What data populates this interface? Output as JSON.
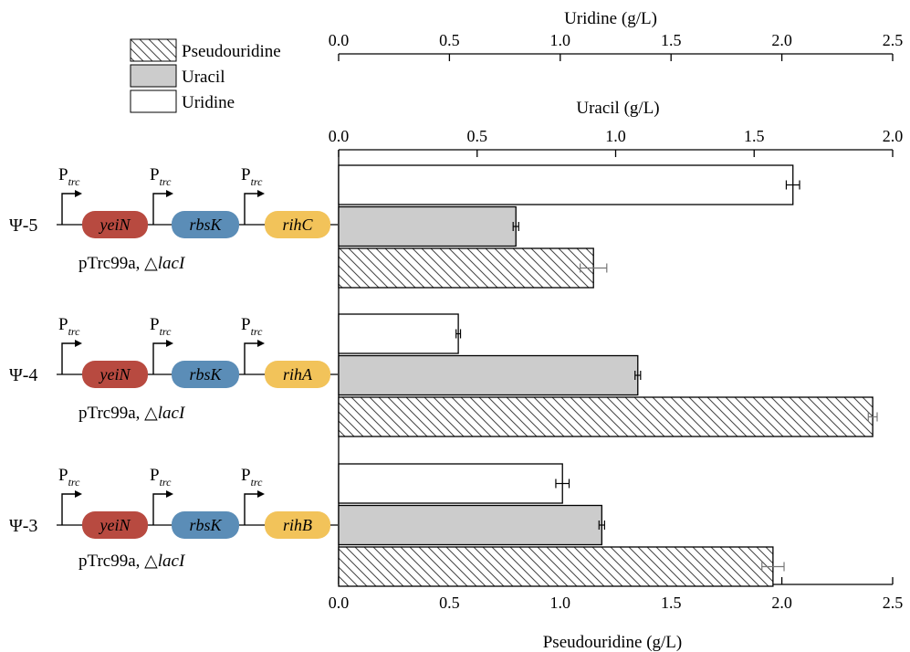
{
  "legend": [
    {
      "key": "pseudouridine",
      "label": "Pseudouridine",
      "style": "hatched"
    },
    {
      "key": "uracil",
      "label": "Uracil",
      "style": "gray"
    },
    {
      "key": "uridine",
      "label": "Uridine",
      "style": "white"
    }
  ],
  "colors": {
    "uracil_fill": "#cccccc",
    "uridine_fill": "#ffffff",
    "hatch_line": "#444444",
    "yeiN": "#b84a40",
    "rbsK": "#5b8db7",
    "rih": "#f2c35a"
  },
  "constructs": [
    {
      "strain": "Ψ-5",
      "genes": [
        "yeiN",
        "rbsK",
        "rihC"
      ],
      "promoter": "P",
      "promoter_sub": "trc",
      "plasmid": "pTrc99a, △",
      "plasmid_gene": "lacI"
    },
    {
      "strain": "Ψ-4",
      "genes": [
        "yeiN",
        "rbsK",
        "rihA"
      ],
      "promoter": "P",
      "promoter_sub": "trc",
      "plasmid": "pTrc99a, △",
      "plasmid_gene": "lacI"
    },
    {
      "strain": "Ψ-3",
      "genes": [
        "yeiN",
        "rbsK",
        "rihB"
      ],
      "promoter": "P",
      "promoter_sub": "trc",
      "plasmid": "pTrc99a, △",
      "plasmid_gene": "lacI"
    }
  ],
  "chart_data": {
    "type": "bar",
    "orientation": "horizontal",
    "categories": [
      "Ψ-5",
      "Ψ-4",
      "Ψ-3"
    ],
    "axes": {
      "uridine": {
        "label": "Uridine (g/L)",
        "position": "top",
        "lim": [
          0,
          2.5
        ],
        "ticks": [
          "0.0",
          "0.5",
          "1.0",
          "1.5",
          "2.0",
          "2.5"
        ]
      },
      "uracil": {
        "label": "Uracil (g/L)",
        "position": "middle",
        "lim": [
          0,
          2.0
        ],
        "ticks": [
          "0.0",
          "0.5",
          "1.0",
          "1.5",
          "2.0"
        ]
      },
      "pseudouridine": {
        "label": "Pseudouridine (g/L)",
        "position": "bottom",
        "lim": [
          0,
          2.5
        ],
        "ticks": [
          "0.0",
          "0.5",
          "1.0",
          "1.5",
          "2.0",
          "2.5"
        ]
      }
    },
    "series": [
      {
        "name": "Uridine",
        "axis": "uridine",
        "values": [
          2.05,
          0.54,
          1.01
        ],
        "errors": [
          0.03,
          0.01,
          0.03
        ]
      },
      {
        "name": "Uracil",
        "axis": "uracil",
        "values": [
          0.64,
          1.08,
          0.95
        ],
        "errors": [
          0.01,
          0.01,
          0.01
        ]
      },
      {
        "name": "Pseudouridine",
        "axis": "pseudouridine",
        "values": [
          1.15,
          2.41,
          1.96
        ],
        "errors": [
          0.06,
          0.02,
          0.05
        ]
      }
    ],
    "grid": false,
    "legend_position": "top-left"
  }
}
